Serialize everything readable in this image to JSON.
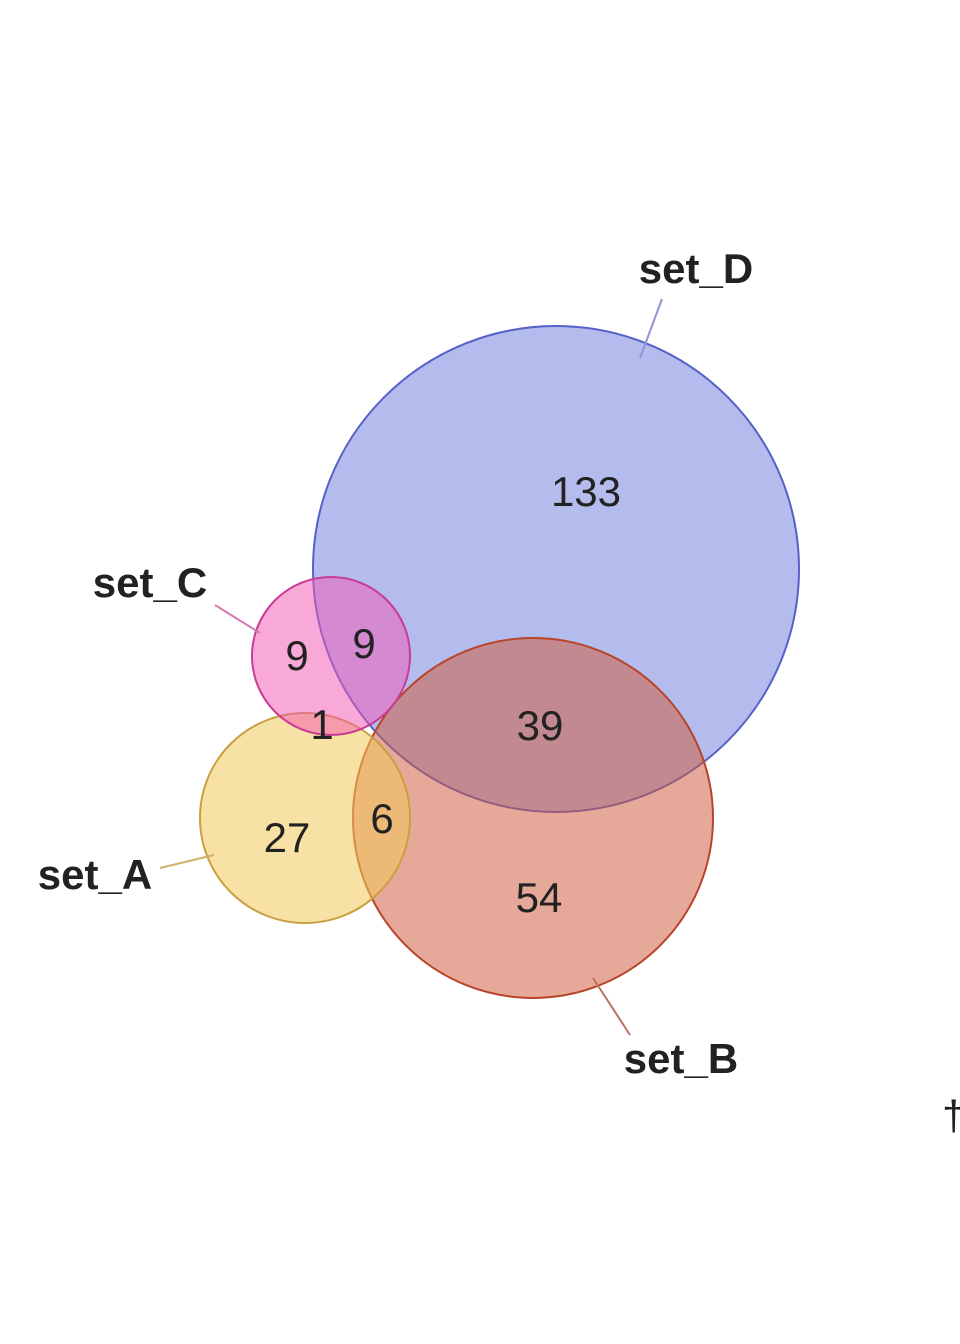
{
  "diagram": {
    "type": "euler-venn",
    "sets": [
      {
        "id": "set_A",
        "label": "set_A",
        "fill": "#F0C85A",
        "stroke": "#C9A040",
        "fill_opacity": 0.55
      },
      {
        "id": "set_B",
        "label": "set_B",
        "fill": "#D05A3C",
        "stroke": "#B8442A",
        "fill_opacity": 0.52
      },
      {
        "id": "set_C",
        "label": "set_C",
        "fill": "#F45BB4",
        "stroke": "#C83C95",
        "fill_opacity": 0.52
      },
      {
        "id": "set_D",
        "label": "set_D",
        "fill": "#6F7FDF",
        "stroke": "#5561C8",
        "fill_opacity": 0.52
      }
    ],
    "regions": [
      {
        "sets": [
          "set_D"
        ],
        "count": "133"
      },
      {
        "sets": [
          "set_C"
        ],
        "count": "9"
      },
      {
        "sets": [
          "set_C",
          "set_D"
        ],
        "count": "9"
      },
      {
        "sets": [
          "set_A",
          "set_C"
        ],
        "count": "1"
      },
      {
        "sets": [
          "set_B",
          "set_D"
        ],
        "count": "39"
      },
      {
        "sets": [
          "set_A"
        ],
        "count": "27"
      },
      {
        "sets": [
          "set_A",
          "set_B"
        ],
        "count": "6"
      },
      {
        "sets": [
          "set_B"
        ],
        "count": "54"
      }
    ],
    "edge_mark": "†"
  }
}
